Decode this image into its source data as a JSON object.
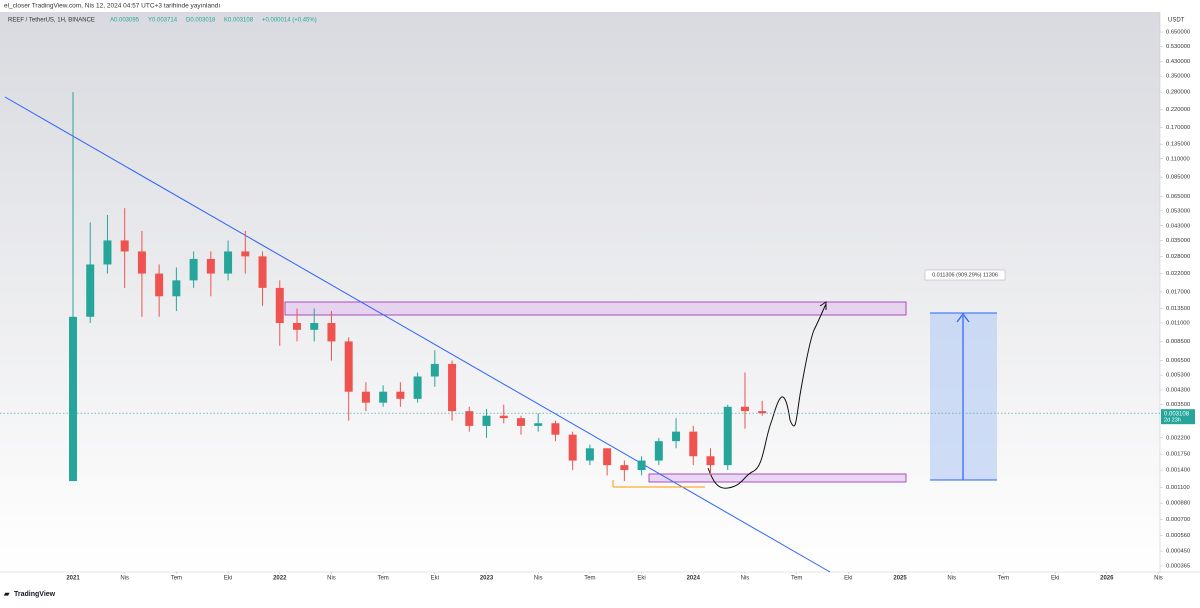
{
  "header": {
    "published": "el_closer TradingView.com, Nis 12, 2024 04:57 UTC+3 tarihinde yayınlandı"
  },
  "chart_data": {
    "type": "candlestick",
    "title": "REEF / TetherUS, 1H, BINANCE",
    "ohlc_legend": [
      "A0.003095",
      "Y0.003714",
      "D0.003018",
      "K0.003108",
      "+0.000014 (+0.45%)"
    ],
    "currency": "USDT",
    "log_scale": true,
    "up_color": "#26a69a",
    "down_color": "#ef5350",
    "x": [
      "2021-01",
      "2021-02",
      "2021-03",
      "2021-04",
      "2021-05",
      "2021-06",
      "2021-07",
      "2021-08",
      "2021-09",
      "2021-10",
      "2021-11",
      "2021-12",
      "2022-01",
      "2022-02",
      "2022-03",
      "2022-04",
      "2022-05",
      "2022-06",
      "2022-07",
      "2022-08",
      "2022-09",
      "2022-10",
      "2022-11",
      "2022-12",
      "2023-01",
      "2023-02",
      "2023-03",
      "2023-04",
      "2023-05",
      "2023-06",
      "2023-07",
      "2023-08",
      "2023-09",
      "2023-10",
      "2023-11",
      "2023-12",
      "2024-01",
      "2024-02",
      "2024-03",
      "2024-04",
      "2024-05"
    ],
    "open": [
      0.0012,
      0.012,
      0.025,
      0.035,
      0.03,
      0.022,
      0.016,
      0.02,
      0.027,
      0.022,
      0.03,
      0.028,
      0.018,
      0.011,
      0.01,
      0.011,
      0.0085,
      0.0042,
      0.0036,
      0.0042,
      0.0038,
      0.0052,
      0.0062,
      0.0032,
      0.0026,
      0.003,
      0.0029,
      0.0026,
      0.0027,
      0.0023,
      0.0016,
      0.0019,
      0.0015,
      0.0014,
      0.0016,
      0.0021,
      0.0024,
      0.0017,
      0.0015,
      0.0034,
      0.0032
    ],
    "high": [
      0.28,
      0.045,
      0.05,
      0.055,
      0.04,
      0.025,
      0.024,
      0.03,
      0.03,
      0.035,
      0.04,
      0.03,
      0.02,
      0.0135,
      0.0135,
      0.013,
      0.009,
      0.0048,
      0.0046,
      0.0048,
      0.0055,
      0.0075,
      0.0065,
      0.0034,
      0.0033,
      0.0035,
      0.003,
      0.0031,
      0.0028,
      0.0024,
      0.002,
      0.0019,
      0.0016,
      0.0017,
      0.0022,
      0.0029,
      0.0026,
      0.0019,
      0.0035,
      0.0055,
      0.0037
    ],
    "low": [
      0.0012,
      0.011,
      0.022,
      0.018,
      0.012,
      0.012,
      0.013,
      0.018,
      0.016,
      0.02,
      0.022,
      0.014,
      0.008,
      0.0085,
      0.0085,
      0.0065,
      0.0028,
      0.0032,
      0.0034,
      0.0034,
      0.0036,
      0.0045,
      0.0028,
      0.0024,
      0.0022,
      0.0027,
      0.0023,
      0.0024,
      0.0021,
      0.0014,
      0.0015,
      0.0013,
      0.0012,
      0.0013,
      0.0015,
      0.0019,
      0.0015,
      0.0013,
      0.0014,
      0.0025,
      0.003
    ],
    "close": [
      0.012,
      0.025,
      0.035,
      0.03,
      0.022,
      0.016,
      0.02,
      0.027,
      0.022,
      0.03,
      0.028,
      0.018,
      0.011,
      0.01,
      0.011,
      0.0085,
      0.0042,
      0.0036,
      0.0042,
      0.0038,
      0.0052,
      0.0062,
      0.0032,
      0.0026,
      0.003,
      0.0029,
      0.0026,
      0.0027,
      0.0023,
      0.0016,
      0.0019,
      0.0015,
      0.0014,
      0.0016,
      0.0021,
      0.0024,
      0.0017,
      0.0015,
      0.0034,
      0.0032,
      0.003108
    ],
    "last_price": 0.003108,
    "countdown": "2d 23h",
    "measure_label": "0.011306 (909.29%) 11306",
    "ylim": [
      0.000365,
      0.65
    ],
    "yticks": [
      {
        "value": 0.65,
        "label": "0.650000"
      },
      {
        "value": 0.53,
        "label": "0.530000"
      },
      {
        "value": 0.43,
        "label": "0.430000"
      },
      {
        "value": 0.35,
        "label": "0.350000"
      },
      {
        "value": 0.28,
        "label": "0.280000"
      },
      {
        "value": 0.22,
        "label": "0.220000"
      },
      {
        "value": 0.17,
        "label": "0.170000"
      },
      {
        "value": 0.135,
        "label": "0.135000"
      },
      {
        "value": 0.11,
        "label": "0.110000"
      },
      {
        "value": 0.085,
        "label": "0.085000"
      },
      {
        "value": 0.065,
        "label": "0.065000"
      },
      {
        "value": 0.053,
        "label": "0.053000"
      },
      {
        "value": 0.043,
        "label": "0.043000"
      },
      {
        "value": 0.035,
        "label": "0.035000"
      },
      {
        "value": 0.028,
        "label": "0.028000"
      },
      {
        "value": 0.022,
        "label": "0.022000"
      },
      {
        "value": 0.017,
        "label": "0.017000"
      },
      {
        "value": 0.0135,
        "label": "0.013500"
      },
      {
        "value": 0.011,
        "label": "0.011000"
      },
      {
        "value": 0.0085,
        "label": "0.008500"
      },
      {
        "value": 0.0065,
        "label": "0.006500"
      },
      {
        "value": 0.0053,
        "label": "0.005300"
      },
      {
        "value": 0.0043,
        "label": "0.004300"
      },
      {
        "value": 0.0035,
        "label": "0.003500"
      },
      {
        "value": 0.0022,
        "label": "0.002200"
      },
      {
        "value": 0.00175,
        "label": "0.001750"
      },
      {
        "value": 0.0014,
        "label": "0.001400"
      },
      {
        "value": 0.0011,
        "label": "0.001100"
      },
      {
        "value": 0.00088,
        "label": "0.000880"
      },
      {
        "value": 0.0007,
        "label": "0.000700"
      },
      {
        "value": 0.00056,
        "label": "0.000560"
      },
      {
        "value": 0.00045,
        "label": "0.000450"
      },
      {
        "value": 0.000365,
        "label": "0.000365"
      }
    ],
    "xticks": [
      {
        "value": "2021-01",
        "label": "2021"
      },
      {
        "value": "2021-04",
        "label": "Nis"
      },
      {
        "value": "2021-07",
        "label": "Tem"
      },
      {
        "value": "2021-10",
        "label": "Eki"
      },
      {
        "value": "2022-01",
        "label": "2022"
      },
      {
        "value": "2022-04",
        "label": "Nis"
      },
      {
        "value": "2022-07",
        "label": "Tem"
      },
      {
        "value": "2022-10",
        "label": "Eki"
      },
      {
        "value": "2023-01",
        "label": "2023"
      },
      {
        "value": "2023-04",
        "label": "Nis"
      },
      {
        "value": "2023-07",
        "label": "Tem"
      },
      {
        "value": "2023-10",
        "label": "Eki"
      },
      {
        "value": "2024-01",
        "label": "2024"
      },
      {
        "value": "2024-04",
        "label": "Nis"
      },
      {
        "value": "2024-07",
        "label": "Tem"
      },
      {
        "value": "2024-10",
        "label": "Eki"
      },
      {
        "value": "2025-01",
        "label": "2025"
      },
      {
        "value": "2025-04",
        "label": "Nis"
      },
      {
        "value": "2025-07",
        "label": "Tem"
      },
      {
        "value": "2025-10",
        "label": "Eki"
      },
      {
        "value": "2026-01",
        "label": "2026"
      },
      {
        "value": "2026-04",
        "label": "Nis"
      }
    ]
  },
  "footer": {
    "brand": "TradingView"
  }
}
